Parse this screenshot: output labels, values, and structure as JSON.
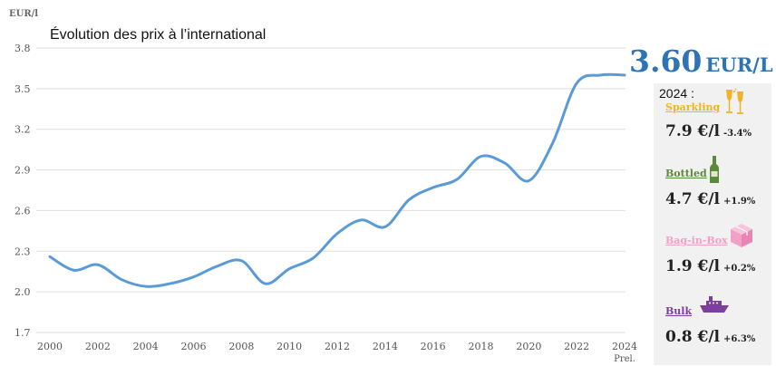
{
  "chart_data": {
    "type": "line",
    "title": "Évolution des prix à l’international",
    "ylabel": "EUR/l",
    "ylim": [
      1.7,
      3.8
    ],
    "yticks": [
      1.7,
      2.0,
      2.3,
      2.6,
      2.9,
      3.2,
      3.5,
      3.8
    ],
    "ytick_labels": [
      "1.7",
      "2.0",
      "2.3",
      "2.6",
      "2.9",
      "3.2",
      "3.5",
      "3.8"
    ],
    "xlim": [
      2000,
      2024
    ],
    "xticks": [
      2000,
      2002,
      2004,
      2006,
      2008,
      2010,
      2012,
      2014,
      2016,
      2018,
      2020,
      2022,
      2024
    ],
    "xtick_labels": [
      "2000",
      "2002",
      "2004",
      "2006",
      "2008",
      "2010",
      "2012",
      "2014",
      "2016",
      "2018",
      "2020",
      "2022",
      "2024"
    ],
    "xtick_sublabel": "Prel.",
    "grid": "horizontal",
    "line_color": "#5b9bd5",
    "series": [
      {
        "x": [
          2000,
          2001,
          2002,
          2003,
          2004,
          2005,
          2006,
          2007,
          2008,
          2009,
          2010,
          2011,
          2012,
          2013,
          2014,
          2015,
          2016,
          2017,
          2018,
          2019,
          2020,
          2021,
          2022,
          2023,
          2024
        ],
        "values": [
          2.26,
          2.16,
          2.2,
          2.09,
          2.04,
          2.06,
          2.11,
          2.19,
          2.23,
          2.06,
          2.17,
          2.25,
          2.43,
          2.53,
          2.48,
          2.68,
          2.77,
          2.83,
          3.0,
          2.95,
          2.82,
          3.1,
          3.54,
          3.6,
          3.6
        ]
      }
    ]
  },
  "highlight": {
    "value": "3.60",
    "unit": "EUR/L",
    "color": "#2f73b4"
  },
  "panel": {
    "year_label": "2024 :",
    "categories": [
      {
        "name": "Sparkling",
        "color": "#f0b323",
        "icon": "champagne-glasses-icon",
        "price": "7.9 €/l",
        "change": "-3.4%"
      },
      {
        "name": "Bottled",
        "color": "#5a8a3a",
        "icon": "wine-bottle-icon",
        "price": "4.7 €/l",
        "change": "+1.9%"
      },
      {
        "name": "Bag-in-Box",
        "color": "#f3a0c8",
        "icon": "box-icon",
        "price": "1.9 €/l",
        "change": "+0.2%"
      },
      {
        "name": "Bulk",
        "color": "#7b3f9e",
        "icon": "ship-icon",
        "price": "0.8 €/l",
        "change": "+6.3%"
      }
    ]
  }
}
